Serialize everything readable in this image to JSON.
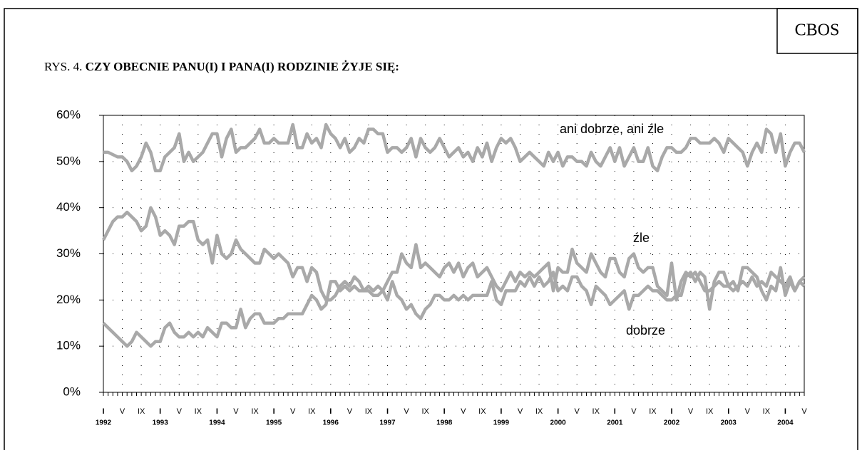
{
  "brand": "CBOS",
  "chart_data": {
    "type": "line",
    "figure_number": "RYS. 4.",
    "title": "CZY OBECNIE PANU(I) I PANA(I) RODZINIE ŻYJE SIĘ:",
    "x": [
      "1992-01",
      "1992-02",
      "1992-03",
      "1992-04",
      "1992-05",
      "1992-06",
      "1992-07",
      "1992-08",
      "1992-09",
      "1992-10",
      "1992-11",
      "1992-12",
      "1993-01",
      "1993-02",
      "1993-03",
      "1993-04",
      "1993-05",
      "1993-06",
      "1993-07",
      "1993-08",
      "1993-09",
      "1993-10",
      "1993-11",
      "1993-12",
      "1994-01",
      "1994-02",
      "1994-03",
      "1994-04",
      "1994-05",
      "1994-06",
      "1994-07",
      "1994-08",
      "1994-09",
      "1994-10",
      "1994-11",
      "1994-12",
      "1995-01",
      "1995-02",
      "1995-03",
      "1995-04",
      "1995-05",
      "1995-06",
      "1995-07",
      "1995-08",
      "1995-09",
      "1995-10",
      "1995-11",
      "1995-12",
      "1996-01",
      "1996-02",
      "1996-03",
      "1996-04",
      "1996-05",
      "1996-06",
      "1996-07",
      "1996-08",
      "1996-09",
      "1996-10",
      "1996-11",
      "1996-12",
      "1997-01",
      "1997-02",
      "1997-03",
      "1997-04",
      "1997-05",
      "1997-06",
      "1997-07",
      "1997-08",
      "1997-09",
      "1997-10",
      "1997-11",
      "1997-12",
      "1998-01",
      "1998-02",
      "1998-03",
      "1998-04",
      "1998-05",
      "1998-06",
      "1998-07",
      "1998-08",
      "1998-09",
      "1998-10",
      "1998-11",
      "1998-12",
      "1999-01",
      "1999-02",
      "1999-03",
      "1999-04",
      "1999-05",
      "1999-06",
      "1999-07",
      "1999-08",
      "1999-09",
      "1999-10",
      "1999-11",
      "1999-12",
      "2000-01",
      "2000-02",
      "2000-03",
      "2000-04",
      "2000-05",
      "2000-06",
      "2000-07",
      "2000-08",
      "2000-09",
      "2000-10",
      "2000-11",
      "2000-12",
      "2001-01",
      "2001-02",
      "2001-03",
      "2001-04",
      "2001-05",
      "2001-06",
      "2001-07",
      "2001-08",
      "2001-09",
      "2001-10",
      "2001-11",
      "2001-12",
      "2002-01",
      "2002-02",
      "2002-03",
      "2002-04",
      "2002-05",
      "2002-06",
      "2002-07",
      "2002-08",
      "2002-09",
      "2002-10",
      "2002-11",
      "2002-12",
      "2003-01",
      "2003-02",
      "2003-03",
      "2003-04",
      "2003-05",
      "2003-06",
      "2003-07",
      "2003-08",
      "2003-09",
      "2003-10",
      "2003-11",
      "2003-12",
      "2004-01",
      "2004-02",
      "2004-03",
      "2004-04",
      "2004-05"
    ],
    "series": [
      {
        "name": "ani dobrze, ani źle",
        "color": "#a9a9a9",
        "values": [
          52,
          52,
          51.5,
          51,
          51,
          50,
          48,
          49,
          51,
          54,
          52,
          48,
          48,
          51,
          52,
          53,
          56,
          50,
          52,
          50,
          51,
          52,
          54,
          56,
          56,
          51,
          55,
          57,
          52,
          53,
          53,
          54,
          55,
          57,
          54,
          54,
          55,
          54,
          54,
          54,
          58,
          53,
          53,
          56,
          54,
          55,
          53,
          58,
          56,
          55,
          53,
          55,
          52,
          53,
          55,
          54,
          57,
          57,
          56,
          56,
          52,
          53,
          53,
          52,
          53,
          55,
          51,
          55,
          53,
          52,
          53,
          55,
          53,
          51,
          52,
          53,
          51,
          52,
          50,
          53,
          51,
          54,
          50,
          53,
          55,
          54,
          55,
          53,
          50,
          51,
          52,
          51,
          50,
          49,
          52,
          50,
          52,
          49,
          51,
          51,
          50,
          50,
          49,
          52,
          50,
          49,
          51,
          53,
          50,
          53,
          49,
          51,
          53,
          50,
          50,
          53,
          49,
          48,
          51,
          53,
          53,
          52,
          52,
          53,
          55,
          55,
          54,
          54,
          54,
          55,
          54,
          52,
          55,
          54,
          53,
          52,
          49,
          52,
          54,
          52,
          57,
          56,
          52,
          56,
          49,
          52,
          54,
          54,
          52
        ]
      },
      {
        "name": "źle",
        "color": "#a9a9a9",
        "values": [
          33,
          35,
          37,
          38,
          38,
          39,
          38,
          37,
          35,
          36,
          40,
          38,
          34,
          35,
          34,
          32,
          36,
          36,
          37,
          37,
          33,
          32,
          33,
          28,
          34,
          30,
          29,
          30,
          33,
          31,
          30,
          29,
          28,
          28,
          31,
          30,
          29,
          30,
          29,
          28,
          25,
          27,
          27,
          24,
          27,
          26,
          22,
          20,
          20,
          21,
          23,
          24,
          23,
          25,
          24,
          22,
          22,
          21,
          21,
          22,
          24,
          26,
          26,
          30,
          28,
          27,
          32,
          27,
          28,
          27,
          26,
          25,
          27,
          28,
          26,
          28,
          25,
          27,
          28,
          25,
          26,
          27,
          25,
          23,
          22,
          24,
          26,
          24,
          26,
          25,
          26,
          25,
          26,
          27,
          28,
          22,
          27,
          26,
          26,
          31,
          28,
          27,
          26,
          30,
          28,
          26,
          25,
          29,
          29,
          26,
          25,
          29,
          30,
          27,
          26,
          27,
          27,
          23,
          22,
          21,
          28,
          20,
          24,
          26,
          25,
          26,
          24,
          22,
          22,
          23,
          24,
          23,
          23,
          24,
          22,
          27,
          27,
          26,
          25,
          22,
          20,
          23,
          22,
          27,
          21,
          24,
          22,
          24,
          23
        ]
      },
      {
        "name": "dobrze",
        "color": "#a9a9a9",
        "values": [
          15,
          14,
          13,
          12,
          11,
          10,
          11,
          13,
          12,
          11,
          10,
          11,
          11,
          14,
          15,
          13,
          12,
          12,
          13,
          12,
          13,
          12,
          14,
          13,
          12,
          15,
          15,
          14,
          14,
          18,
          14,
          16,
          17,
          17,
          15,
          15,
          15,
          16,
          16,
          17,
          17,
          17,
          17,
          19,
          21,
          20,
          18,
          19,
          24,
          24,
          22,
          23,
          22,
          23,
          22,
          22,
          23,
          22,
          23,
          22,
          20,
          24,
          21,
          20,
          18,
          19,
          17,
          16,
          18,
          19,
          21,
          21,
          20,
          20,
          21,
          20,
          21,
          20,
          21,
          21,
          21,
          21,
          24,
          20,
          19,
          22,
          22,
          22,
          24,
          23,
          25,
          23,
          25,
          23,
          24,
          26,
          22,
          23,
          22,
          25,
          25,
          23,
          22,
          19,
          23,
          22,
          21,
          19,
          20,
          21,
          22,
          18,
          21,
          21,
          22,
          23,
          22,
          22,
          21,
          20,
          20,
          21,
          21,
          25,
          26,
          24,
          26,
          25,
          18,
          24,
          26,
          26,
          23,
          22,
          23,
          24,
          23,
          25,
          23,
          24,
          23,
          26,
          25,
          24,
          23,
          25,
          22,
          24,
          25
        ]
      }
    ],
    "xlim": [
      "1992-01",
      "2004-05"
    ],
    "xticks": [
      {
        "value": "1992-01",
        "label": "I"
      },
      {
        "value": "1992-05",
        "label": "V"
      },
      {
        "value": "1992-09",
        "label": "IX"
      },
      {
        "value": "1993-01",
        "label": "I"
      },
      {
        "value": "1993-05",
        "label": "V"
      },
      {
        "value": "1993-09",
        "label": "IX"
      },
      {
        "value": "1994-01",
        "label": "I"
      },
      {
        "value": "1994-05",
        "label": "V"
      },
      {
        "value": "1994-09",
        "label": "IX"
      },
      {
        "value": "1995-01",
        "label": "I"
      },
      {
        "value": "1995-05",
        "label": "V"
      },
      {
        "value": "1995-09",
        "label": "IX"
      },
      {
        "value": "1996-01",
        "label": "I"
      },
      {
        "value": "1996-05",
        "label": "V"
      },
      {
        "value": "1996-09",
        "label": "IX"
      },
      {
        "value": "1997-01",
        "label": "I"
      },
      {
        "value": "1997-05",
        "label": "V"
      },
      {
        "value": "1997-09",
        "label": "IX"
      },
      {
        "value": "1998-01",
        "label": "I"
      },
      {
        "value": "1998-05",
        "label": "V"
      },
      {
        "value": "1998-09",
        "label": "IX"
      },
      {
        "value": "1999-01",
        "label": "I"
      },
      {
        "value": "1999-05",
        "label": "V"
      },
      {
        "value": "1999-09",
        "label": "IX"
      },
      {
        "value": "2000-01",
        "label": "I"
      },
      {
        "value": "2000-05",
        "label": "V"
      },
      {
        "value": "2000-09",
        "label": "IX"
      },
      {
        "value": "2001-01",
        "label": "I"
      },
      {
        "value": "2001-05",
        "label": "V"
      },
      {
        "value": "2001-09",
        "label": "IX"
      },
      {
        "value": "2002-01",
        "label": "I"
      },
      {
        "value": "2002-05",
        "label": "V"
      },
      {
        "value": "2002-09",
        "label": "IX"
      },
      {
        "value": "2003-01",
        "label": "I"
      },
      {
        "value": "2003-05",
        "label": "V"
      },
      {
        "value": "2003-09",
        "label": "IX"
      },
      {
        "value": "2004-01",
        "label": "I"
      },
      {
        "value": "2004-05",
        "label": "V"
      }
    ],
    "year_labels": [
      {
        "value": "1992-01",
        "label": "1992"
      },
      {
        "value": "1993-01",
        "label": "1993"
      },
      {
        "value": "1994-01",
        "label": "1994"
      },
      {
        "value": "1995-01",
        "label": "1995"
      },
      {
        "value": "1996-01",
        "label": "1996"
      },
      {
        "value": "1997-01",
        "label": "1997"
      },
      {
        "value": "1998-01",
        "label": "1998"
      },
      {
        "value": "1999-01",
        "label": "1999"
      },
      {
        "value": "2000-01",
        "label": "2000"
      },
      {
        "value": "2001-01",
        "label": "2001"
      },
      {
        "value": "2002-01",
        "label": "2002"
      },
      {
        "value": "2003-01",
        "label": "2003"
      },
      {
        "value": "2004-01",
        "label": "2004"
      }
    ],
    "ylim": [
      0,
      60
    ],
    "yticks": [
      {
        "value": 0,
        "label": "0%"
      },
      {
        "value": 10,
        "label": "10%"
      },
      {
        "value": 20,
        "label": "20%"
      },
      {
        "value": 30,
        "label": "30%"
      },
      {
        "value": 40,
        "label": "40%"
      },
      {
        "value": 50,
        "label": "50%"
      },
      {
        "value": 60,
        "label": "60%"
      }
    ],
    "grid": true
  }
}
